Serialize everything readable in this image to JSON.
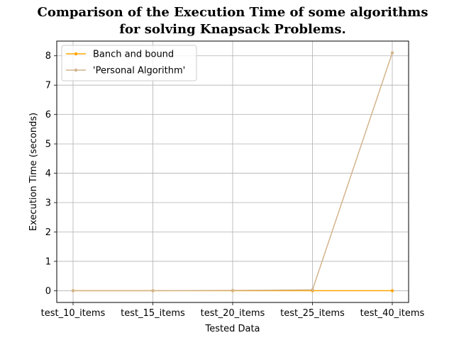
{
  "chart_data": {
    "type": "line",
    "title": [
      "Comparison of the Execution Time of some algorithms",
      "for solving Knapsack Problems."
    ],
    "xlabel": "Tested Data",
    "ylabel": "Execution Time (seconds)",
    "categories": [
      "test_10_items",
      "test_15_items",
      "test_20_items",
      "test_25_items",
      "test_40_items"
    ],
    "ylim": [
      -0.4,
      8.5
    ],
    "yticks": [
      0,
      1,
      2,
      3,
      4,
      5,
      6,
      7,
      8
    ],
    "grid": true,
    "legend_position": "upper-left",
    "series": [
      {
        "name": "Banch and bound",
        "color": "#ffa500",
        "values": [
          0.0,
          0.0,
          0.0,
          0.0,
          0.0
        ]
      },
      {
        "name": "'Personal Algorithm'",
        "color": "#d2b48c",
        "values": [
          0.0,
          0.0,
          0.01,
          0.03,
          8.1
        ]
      }
    ]
  }
}
